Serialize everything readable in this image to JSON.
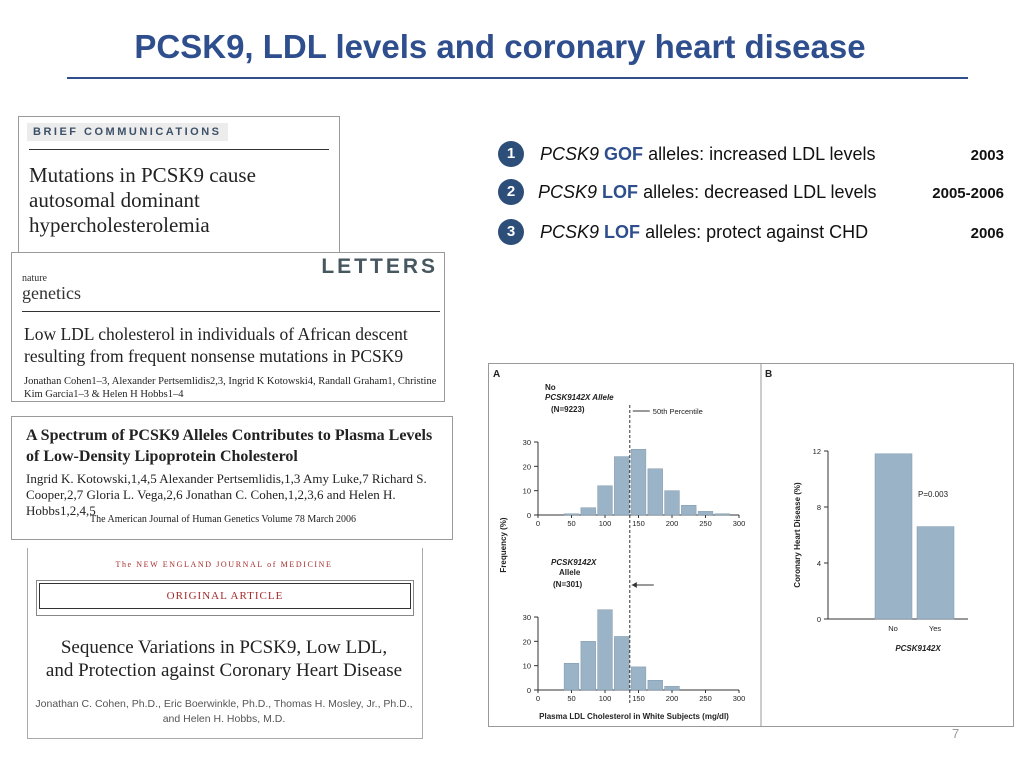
{
  "title": "PCSK9, LDL levels and coronary heart disease",
  "papers": {
    "p1": {
      "tag": "BRIEF COMMUNICATIONS",
      "title_l1": "Mutations in PCSK9 cause",
      "title_l2": "autosomal dominant",
      "title_l3": "hypercholesterolemia"
    },
    "p2": {
      "logo_nature": "nature",
      "logo_genetics": "genetics",
      "section": "LETTERS",
      "title_l1": "Low LDL cholesterol in individuals of African descent",
      "title_l2": "resulting from frequent nonsense mutations in PCSK9",
      "authors": "Jonathan Cohen1–3, Alexander Pertsemlidis2,3, Ingrid K Kotowski4, Randall Graham1, Christine Kim Garcia1–3 & Helen H Hobbs1–4"
    },
    "p3": {
      "title_l1": "A Spectrum of PCSK9 Alleles Contributes to Plasma Levels",
      "title_l2": "of Low-Density Lipoprotein Cholesterol",
      "authors": "Ingrid K. Kotowski,1,4,5 Alexander Pertsemlidis,1,3 Amy Luke,7 Richard S. Cooper,2,7 Gloria L. Vega,2,6 Jonathan C. Cohen,1,2,3,6 and Helen H. Hobbs1,2,4,5",
      "journal": "The American Journal of Human Genetics   Volume 78   March 2006"
    },
    "p4": {
      "journal": "The NEW ENGLAND JOURNAL of MEDICINE",
      "section": "ORIGINAL ARTICLE",
      "title_l1": "Sequence Variations in PCSK9, Low LDL,",
      "title_l2": "and Protection against Coronary Heart Disease",
      "authors_l1": "Jonathan C. Cohen, Ph.D., Eric Boerwinkle, Ph.D., Thomas H. Mosley, Jr., Ph.D.,",
      "authors_l2": "and Helen H. Hobbs, M.D."
    }
  },
  "list": [
    {
      "num": "1",
      "gene": "PCSK9",
      "type": "GOF",
      "text": "alleles: increased LDL levels",
      "year": "2003"
    },
    {
      "num": "2",
      "gene": "PCSK9",
      "type": "LOF",
      "text": "alleles: decreased LDL levels",
      "year": "2005-2006"
    },
    {
      "num": "3",
      "gene": "PCSK9",
      "type": "LOF",
      "text": "alleles: protect against CHD",
      "year": "2006"
    }
  ],
  "figure": {
    "panel_a": "A",
    "panel_b": "B",
    "top_label_l1": "No",
    "top_label_l2": "PCSK9142X Allele",
    "top_n": "(N=9223)",
    "percentile": "50th Percentile",
    "bottom_label_l1": "PCSK9142X",
    "bottom_label_l2": "Allele",
    "bottom_n": "(N=301)",
    "ylabel_a": "Frequency (%)",
    "xlabel_a": "Plasma LDL Cholesterol in White Subjects (mg/dl)",
    "ylabel_b": "Coronary Heart Disease (%)",
    "xlabel_b": "PCSK9142X",
    "pvalue": "P=0.003"
  },
  "chart_data": [
    {
      "type": "bar",
      "title": "No PCSK9142X Allele (N=9223)",
      "x": [
        50,
        75,
        100,
        125,
        150,
        175,
        200,
        225,
        250,
        275
      ],
      "values": [
        0.5,
        3,
        12,
        24,
        27,
        19,
        10,
        4,
        1.5,
        0.5
      ],
      "ylim": [
        0,
        30
      ],
      "yticks": [
        0,
        10,
        20,
        30
      ],
      "xticks": [
        0,
        50,
        100,
        150,
        200,
        250,
        300
      ],
      "annotation": "50th Percentile",
      "percentile_x": 137
    },
    {
      "type": "bar",
      "title": "PCSK9142X Allele (N=301)",
      "x": [
        50,
        75,
        100,
        125,
        150,
        175,
        200
      ],
      "values": [
        11,
        20,
        33,
        22,
        9.5,
        4,
        1.5
      ],
      "ylim": [
        0,
        30
      ],
      "yticks": [
        0,
        10,
        20,
        30
      ],
      "xticks": [
        0,
        50,
        100,
        150,
        200,
        250,
        300
      ],
      "xlabel": "Plasma LDL Cholesterol in White Subjects (mg/dl)",
      "ylabel": "Frequency (%)"
    },
    {
      "type": "bar",
      "title": "Coronary Heart Disease by PCSK9142X",
      "categories": [
        "No",
        "Yes"
      ],
      "values": [
        11.8,
        6.6
      ],
      "ylim": [
        0,
        12
      ],
      "yticks": [
        0,
        4,
        8,
        12
      ],
      "ylabel": "Coronary Heart Disease (%)",
      "xlabel": "PCSK9142X",
      "annotation": "P=0.003"
    }
  ],
  "page_number": "7"
}
